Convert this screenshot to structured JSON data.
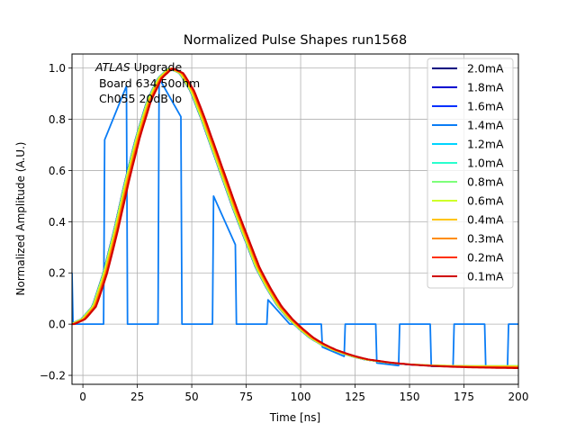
{
  "chart_data": {
    "type": "line",
    "title": "Normalized Pulse Shapes run1568",
    "xlabel": "Time [ns]",
    "ylabel": "Normalized Amplitude (A.U.)",
    "xlim": [
      -5,
      200
    ],
    "ylim": [
      -0.235,
      1.055
    ],
    "xticks": [
      0,
      25,
      50,
      75,
      100,
      125,
      150,
      175,
      200
    ],
    "xtick_labels": [
      "0",
      "25",
      "50",
      "75",
      "100",
      "125",
      "150",
      "175",
      "200"
    ],
    "yticks": [
      -0.2,
      0.0,
      0.2,
      0.4,
      0.6,
      0.8,
      1.0
    ],
    "ytick_labels": [
      "−0.2",
      "0.0",
      "0.2",
      "0.4",
      "0.6",
      "0.8",
      "1.0"
    ],
    "grid": true,
    "legend_position": "top-right",
    "annotation": {
      "italic_part": "ATLAS",
      "line1_rest": " Upgrade",
      "line2": " Board 634 50ohm",
      "line3": " Ch055 20dB lo"
    },
    "series": [
      {
        "name": "2.0mA",
        "color": "#00007f",
        "shape": "pulse",
        "peak_shift": -0.6,
        "tail": -0.168
      },
      {
        "name": "1.8mA",
        "color": "#0000d0",
        "shape": "pulse",
        "peak_shift": -0.6,
        "tail": -0.168
      },
      {
        "name": "1.6mA",
        "color": "#0030ff",
        "shape": "pulse",
        "peak_shift": -0.5,
        "tail": -0.168
      },
      {
        "name": "1.4mA",
        "color": "#0a7cf5",
        "shape": "points",
        "x": [
          -5,
          -4.5,
          9.5,
          10,
          20,
          20.5,
          34.5,
          35,
          45,
          45.5,
          59.5,
          60,
          70,
          70.5,
          84.5,
          85,
          95,
          109.5,
          110,
          120,
          120.5,
          134.5,
          135,
          145,
          145.5,
          159.5,
          160,
          170,
          170.5,
          184.5,
          185,
          195,
          195.5,
          200
        ],
        "y": [
          0.2,
          0.0,
          0.0,
          0.72,
          0.93,
          0.0,
          0.0,
          0.96,
          0.81,
          0.0,
          0.0,
          0.5,
          0.31,
          0.0,
          0.0,
          0.095,
          0.0,
          0.0,
          -0.09,
          -0.126,
          0.0,
          0.0,
          -0.152,
          -0.162,
          0.0,
          0.0,
          -0.165,
          -0.165,
          0.0,
          0.0,
          -0.166,
          -0.166,
          0.0,
          0.0
        ]
      },
      {
        "name": "1.2mA",
        "color": "#00d4ff",
        "shape": "pulse",
        "peak_shift": -0.4,
        "tail": -0.165
      },
      {
        "name": "1.0mA",
        "color": "#29ffce",
        "shape": "pulse",
        "peak_shift": -0.4,
        "tail": -0.164
      },
      {
        "name": "0.8mA",
        "color": "#7dff7a",
        "shape": "pulse",
        "peak_shift": -0.5,
        "tail": -0.163
      },
      {
        "name": "0.6mA",
        "color": "#ceff29",
        "shape": "pulse",
        "peak_shift": -0.2,
        "tail": -0.164
      },
      {
        "name": "0.4mA",
        "color": "#ffc400",
        "shape": "pulse",
        "peak_shift": 0.2,
        "tail": -0.166
      },
      {
        "name": "0.3mA",
        "color": "#ff8c00",
        "shape": "pulse",
        "peak_shift": 0.5,
        "tail": -0.168
      },
      {
        "name": "0.2mA",
        "color": "#ff3000",
        "shape": "pulse",
        "peak_shift": 0.9,
        "tail": -0.17
      },
      {
        "name": "0.1mA",
        "color": "#d00000",
        "shape": "pulse",
        "peak_shift": 1.2,
        "tail": -0.172
      }
    ],
    "pulse_shape_reference": {
      "x": [
        -5,
        0,
        5,
        10,
        15,
        20,
        25,
        30,
        35,
        40,
        45,
        50,
        55,
        60,
        65,
        70,
        75,
        80,
        85,
        90,
        95,
        100,
        105,
        110,
        115,
        120,
        125,
        130,
        140,
        150,
        160,
        170,
        180,
        190,
        200
      ],
      "y": [
        0.0,
        0.02,
        0.07,
        0.2,
        0.37,
        0.56,
        0.73,
        0.87,
        0.96,
        1.0,
        0.98,
        0.91,
        0.8,
        0.68,
        0.56,
        0.44,
        0.33,
        0.22,
        0.14,
        0.07,
        0.02,
        -0.02,
        -0.055,
        -0.08,
        -0.1,
        -0.115,
        -0.128,
        -0.138,
        -0.15,
        -0.158,
        -0.163,
        -0.166,
        -0.168,
        -0.169,
        -0.17
      ]
    }
  }
}
